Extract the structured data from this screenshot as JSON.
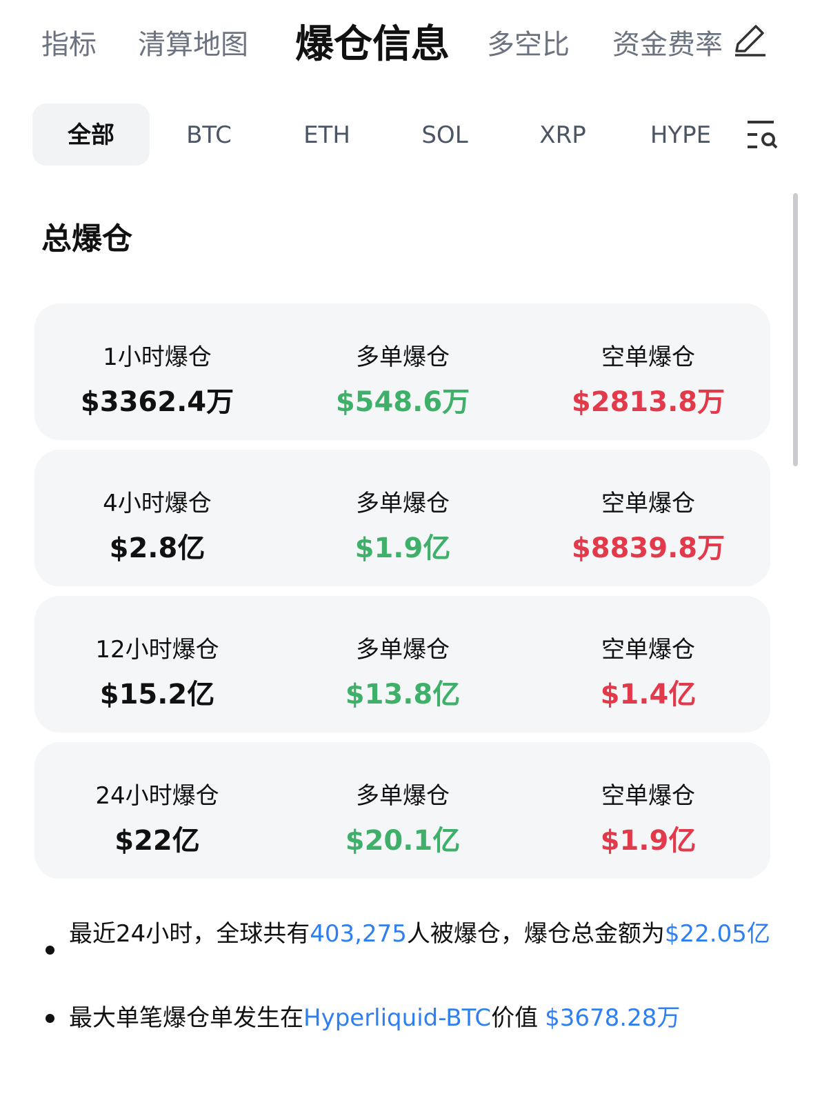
{
  "top_tabs": [
    "指标",
    "清算地图",
    "爆仓信息",
    "多空比",
    "资金费率"
  ],
  "coin_tabs": [
    "全部",
    "BTC",
    "ETH",
    "SOL",
    "XRP",
    "HYPE"
  ],
  "section_title": "总爆仓",
  "rows": [
    {
      "period": "1小时爆仓",
      "total": "$3362.4万",
      "long_label": "多单爆仓",
      "long": "$548.6万",
      "short_label": "空单爆仓",
      "short": "$2813.8万"
    },
    {
      "period": "4小时爆仓",
      "total": "$2.8亿",
      "long_label": "多单爆仓",
      "long": "$1.9亿",
      "short_label": "空单爆仓",
      "short": "$8839.8万"
    },
    {
      "period": "12小时爆仓",
      "total": "$15.2亿",
      "long_label": "多单爆仓",
      "long": "$13.8亿",
      "short_label": "空单爆仓",
      "short": "$1.4亿"
    },
    {
      "period": "24小时爆仓",
      "total": "$22亿",
      "long_label": "多单爆仓",
      "long": "$20.1亿",
      "short_label": "空单爆仓",
      "short": "$1.9亿"
    }
  ],
  "notes": [
    [
      "最近24小时，全球共有",
      "403,275",
      "人被爆仓，爆仓总金额为",
      "$22.05亿"
    ],
    [
      "最大单笔爆仓单发生在",
      "Hyperliquid-BTC",
      "价值",
      "$3678.28万"
    ]
  ]
}
